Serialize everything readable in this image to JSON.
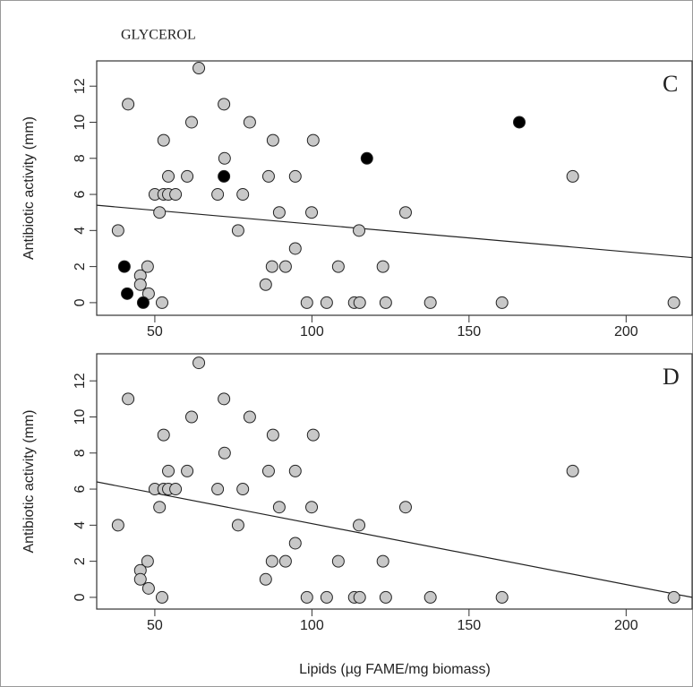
{
  "chart_data": [
    {
      "type": "scatter",
      "title": "GLYCEROL",
      "panel_label": "C",
      "y_label": "Antibiotic activity (mm)",
      "xlim": [
        31.5,
        221
      ],
      "xticks": [
        50,
        100,
        150,
        200
      ],
      "ylim": [
        -0.7,
        13.4
      ],
      "yticks": [
        0,
        2,
        4,
        6,
        8,
        10,
        12
      ],
      "series": [
        {
          "color": "#c8c8c8",
          "x": [
            38.3,
            41.5,
            45.4,
            45.4,
            47.7,
            48,
            50,
            51.5,
            52.3,
            52.8,
            52.8,
            54.3,
            54.3,
            56.6,
            60.3,
            61.7,
            64,
            70,
            72,
            72.2,
            76.5,
            78,
            80.2,
            85.3,
            86.2,
            87.6,
            87.3,
            89.6,
            91.6,
            94.7,
            94.7,
            98.4,
            99.9,
            100.4,
            104.7,
            108.4,
            113.5,
            115.2,
            115,
            122.6,
            123.5,
            129.8,
            137.7,
            160.5,
            183,
            215.2
          ],
          "y": [
            4,
            11,
            1.5,
            1,
            2,
            0.5,
            6,
            5,
            0,
            9,
            6,
            7,
            6,
            6,
            7,
            10,
            13,
            6,
            11,
            8,
            4,
            6,
            10,
            1,
            7,
            9,
            2,
            5,
            2,
            3,
            7,
            0,
            5,
            9,
            0,
            2,
            0,
            0,
            4,
            2,
            0,
            5,
            0,
            0,
            7,
            0
          ]
        },
        {
          "color": "#000000",
          "x": [
            40.3,
            41.2,
            46.3,
            72,
            117.5,
            166
          ],
          "y": [
            2,
            0.5,
            0,
            7,
            8,
            10
          ]
        }
      ],
      "fit_line": {
        "x": [
          31.5,
          221
        ],
        "y": [
          5.4,
          2.5
        ]
      }
    },
    {
      "type": "scatter",
      "panel_label": "D",
      "y_label": "Antibiotic activity (mm)",
      "x_label": "Lipids (µg FAME/mg biomass)",
      "xlim": [
        31.5,
        221
      ],
      "xticks": [
        50,
        100,
        150,
        200
      ],
      "ylim": [
        -0.65,
        13.5
      ],
      "yticks": [
        0,
        2,
        4,
        6,
        8,
        10,
        12
      ],
      "series": [
        {
          "color": "#c8c8c8",
          "x": [
            38.3,
            41.5,
            45.4,
            45.4,
            47.7,
            48,
            50,
            51.5,
            52.3,
            52.8,
            52.8,
            54.3,
            54.3,
            56.6,
            60.3,
            61.7,
            64,
            70,
            72,
            72.2,
            76.5,
            78,
            80.2,
            85.3,
            86.2,
            87.6,
            87.3,
            89.6,
            91.6,
            94.7,
            94.7,
            98.4,
            99.9,
            100.4,
            104.7,
            108.4,
            113.5,
            115.2,
            115,
            122.6,
            123.5,
            129.8,
            137.7,
            160.5,
            183,
            215.2
          ],
          "y": [
            4,
            11,
            1.5,
            1,
            2,
            0.5,
            6,
            5,
            0,
            9,
            6,
            7,
            6,
            6,
            7,
            10,
            13,
            6,
            11,
            8,
            4,
            6,
            10,
            1,
            7,
            9,
            2,
            5,
            2,
            3,
            7,
            0,
            5,
            9,
            0,
            2,
            0,
            0,
            4,
            2,
            0,
            5,
            0,
            0,
            7,
            0
          ]
        }
      ],
      "fit_line": {
        "x": [
          31.5,
          221
        ],
        "y": [
          6.4,
          0
        ]
      }
    }
  ]
}
